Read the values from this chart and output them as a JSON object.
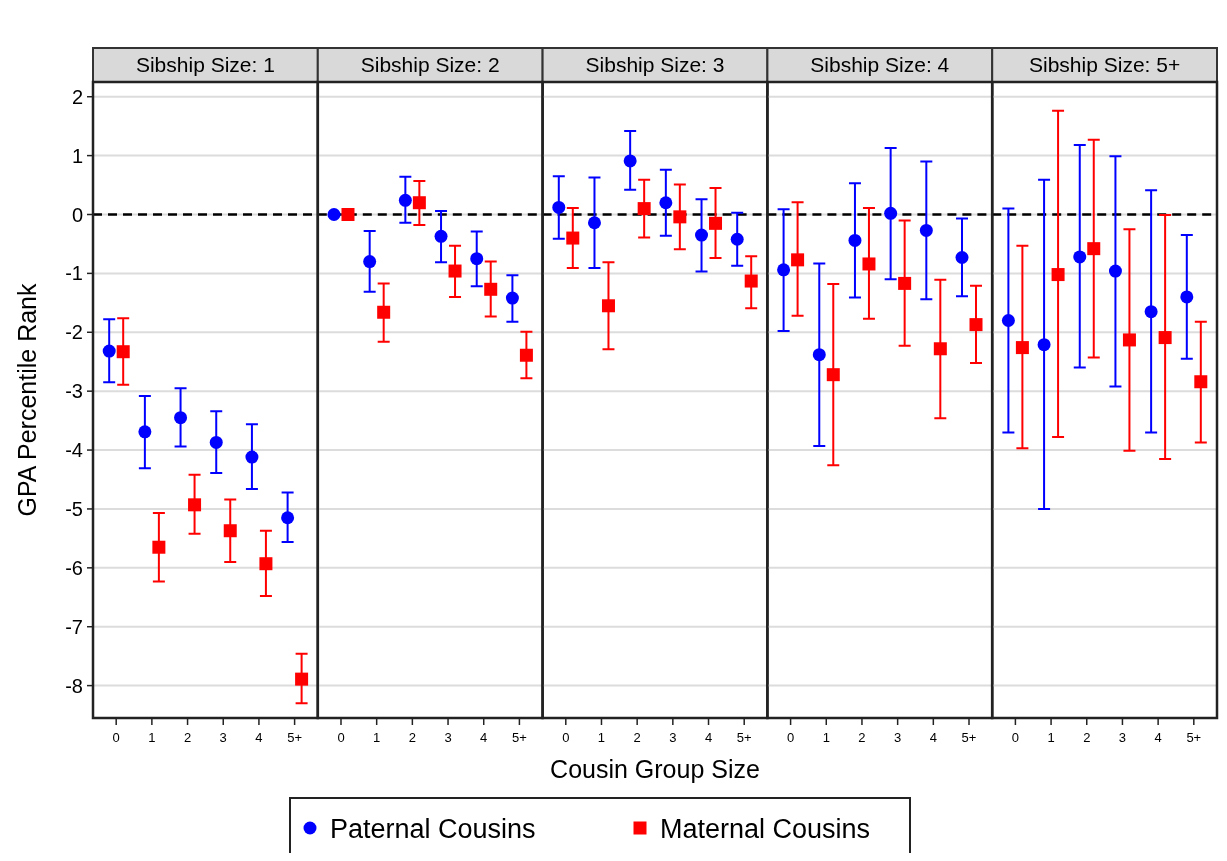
{
  "chart_data": [
    {
      "type": "scatter",
      "title": "Sibship Size: 1",
      "ylabel": "GPA Percentile Rank",
      "categories": [
        "0",
        "1",
        "2",
        "3",
        "4",
        "5+"
      ],
      "ylim": [
        -8.55,
        2.25
      ],
      "yticks": [
        -8,
        -7,
        -6,
        -5,
        -4,
        -3,
        -2,
        -1,
        0,
        1,
        2
      ],
      "grid": "y",
      "ref_lines": [
        {
          "axis": "y",
          "value": 0,
          "line_style": "dashed",
          "color": "#000000"
        }
      ],
      "series": [
        {
          "color": "#0000ff",
          "marker": "circle",
          "values": [
            -2.32,
            -3.69,
            -3.45,
            -3.87,
            -4.12,
            -5.15
          ],
          "errors": [
            [
              -2.85,
              -1.78
            ],
            [
              -4.31,
              -3.08
            ],
            [
              -3.94,
              -2.95
            ],
            [
              -4.39,
              -3.34
            ],
            [
              -4.66,
              -3.56
            ],
            [
              -5.56,
              -4.72
            ]
          ]
        },
        {
          "color": "#ff0000",
          "marker": "square",
          "values": [
            -2.33,
            -5.65,
            -4.93,
            -5.37,
            -5.93,
            -7.89
          ],
          "errors": [
            [
              -2.89,
              -1.76
            ],
            [
              -6.23,
              -5.07
            ],
            [
              -5.42,
              -4.42
            ],
            [
              -5.9,
              -4.84
            ],
            [
              -6.48,
              -5.37
            ],
            [
              -8.3,
              -7.46
            ]
          ]
        }
      ]
    },
    {
      "type": "scatter",
      "title": "Sibship Size: 2",
      "categories": [
        "0",
        "1",
        "2",
        "3",
        "4",
        "5+"
      ],
      "ylim": [
        -8.55,
        2.25
      ],
      "yticks": [
        -8,
        -7,
        -6,
        -5,
        -4,
        -3,
        -2,
        -1,
        0,
        1,
        2
      ],
      "tick_labels": "x",
      "grid": "y",
      "ref_lines": [
        {
          "axis": "y",
          "value": 0,
          "line_style": "dashed",
          "color": "#000000"
        }
      ],
      "series": [
        {
          "color": "#0000ff",
          "marker": "circle",
          "values": [
            0,
            -0.8,
            0.24,
            -0.37,
            -0.75,
            -1.42
          ],
          "errors": [
            null,
            [
              -1.31,
              -0.28
            ],
            [
              -0.14,
              0.64
            ],
            [
              -0.81,
              0.06
            ],
            [
              -1.22,
              -0.29
            ],
            [
              -1.82,
              -1.03
            ]
          ]
        },
        {
          "color": "#ff0000",
          "marker": "square",
          "values": [
            0,
            -1.66,
            0.2,
            -0.96,
            -1.27,
            -2.39
          ],
          "errors": [
            null,
            [
              -2.16,
              -1.17
            ],
            [
              -0.18,
              0.57
            ],
            [
              -1.4,
              -0.53
            ],
            [
              -1.73,
              -0.8
            ],
            [
              -2.78,
              -1.99
            ]
          ]
        }
      ]
    },
    {
      "type": "scatter",
      "title": "Sibship Size: 3",
      "xlabel": "Cousin Group Size",
      "legend": "bottom",
      "categories": [
        "0",
        "1",
        "2",
        "3",
        "4",
        "5+"
      ],
      "ylim": [
        -8.55,
        2.25
      ],
      "yticks": [
        -8,
        -7,
        -6,
        -5,
        -4,
        -3,
        -2,
        -1,
        0,
        1,
        2
      ],
      "tick_labels": "x",
      "grid": "y",
      "ref_lines": [
        {
          "axis": "y",
          "value": 0,
          "line_style": "dashed",
          "color": "#000000"
        }
      ],
      "series": [
        {
          "name": "Paternal Cousins",
          "color": "#0000ff",
          "marker": "circle",
          "values": [
            0.12,
            -0.14,
            0.91,
            0.2,
            -0.35,
            -0.42
          ],
          "errors": [
            [
              -0.41,
              0.65
            ],
            [
              -0.91,
              0.63
            ],
            [
              0.42,
              1.42
            ],
            [
              -0.36,
              0.76
            ],
            [
              -0.97,
              0.26
            ],
            [
              -0.87,
              0.03
            ]
          ]
        },
        {
          "name": "Maternal Cousins",
          "color": "#ff0000",
          "marker": "square",
          "values": [
            -0.4,
            -1.55,
            0.1,
            -0.04,
            -0.15,
            -1.13
          ],
          "errors": [
            [
              -0.91,
              0.11
            ],
            [
              -2.29,
              -0.81
            ],
            [
              -0.39,
              0.59
            ],
            [
              -0.59,
              0.51
            ],
            [
              -0.74,
              0.45
            ],
            [
              -1.59,
              -0.71
            ]
          ]
        }
      ]
    },
    {
      "type": "scatter",
      "title": "Sibship Size: 4",
      "categories": [
        "0",
        "1",
        "2",
        "3",
        "4",
        "5+"
      ],
      "ylim": [
        -8.55,
        2.25
      ],
      "yticks": [
        -8,
        -7,
        -6,
        -5,
        -4,
        -3,
        -2,
        -1,
        0,
        1,
        2
      ],
      "tick_labels": "x",
      "grid": "y",
      "ref_lines": [
        {
          "axis": "y",
          "value": 0,
          "line_style": "dashed",
          "color": "#000000"
        }
      ],
      "series": [
        {
          "color": "#0000ff",
          "marker": "circle",
          "values": [
            -0.94,
            -2.38,
            -0.44,
            0.02,
            -0.27,
            -0.73
          ],
          "errors": [
            [
              -1.98,
              0.09
            ],
            [
              -3.93,
              -0.83
            ],
            [
              -1.41,
              0.53
            ],
            [
              -1.1,
              1.13
            ],
            [
              -1.44,
              0.9
            ],
            [
              -1.39,
              -0.07
            ]
          ]
        },
        {
          "color": "#ff0000",
          "marker": "square",
          "values": [
            -0.77,
            -2.72,
            -0.84,
            -1.17,
            -2.28,
            -1.87
          ],
          "errors": [
            [
              -1.72,
              0.21
            ],
            [
              -4.26,
              -1.18
            ],
            [
              -1.77,
              0.11
            ],
            [
              -2.23,
              -0.1
            ],
            [
              -3.46,
              -1.11
            ],
            [
              -2.52,
              -1.21
            ]
          ]
        }
      ]
    },
    {
      "type": "scatter",
      "title": "Sibship Size: 5+",
      "categories": [
        "0",
        "1",
        "2",
        "3",
        "4",
        "5+"
      ],
      "ylim": [
        -8.55,
        2.25
      ],
      "yticks": [
        -8,
        -7,
        -6,
        -5,
        -4,
        -3,
        -2,
        -1,
        0,
        1,
        2
      ],
      "tick_labels": "x",
      "grid": "y",
      "ref_lines": [
        {
          "axis": "y",
          "value": 0,
          "line_style": "dashed",
          "color": "#000000"
        }
      ],
      "series": [
        {
          "color": "#0000ff",
          "marker": "circle",
          "values": [
            -1.8,
            -2.21,
            -0.72,
            -0.96,
            -1.65,
            -1.4
          ],
          "errors": [
            [
              -3.7,
              0.1
            ],
            [
              -5.0,
              0.59
            ],
            [
              -2.6,
              1.18
            ],
            [
              -2.92,
              0.99
            ],
            [
              -3.7,
              0.41
            ],
            [
              -2.45,
              -0.35
            ]
          ]
        },
        {
          "color": "#ff0000",
          "marker": "square",
          "values": [
            -2.26,
            -1.02,
            -0.58,
            -2.13,
            -2.09,
            -2.84
          ],
          "errors": [
            [
              -3.97,
              -0.53
            ],
            [
              -3.78,
              1.76
            ],
            [
              -2.43,
              1.27
            ],
            [
              -4.01,
              -0.25
            ],
            [
              -4.15,
              -0.01
            ],
            [
              -3.87,
              -1.82
            ]
          ]
        }
      ]
    }
  ]
}
